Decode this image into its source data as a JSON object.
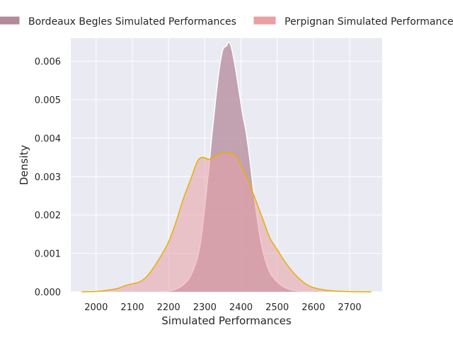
{
  "chart_data": {
    "type": "area",
    "title": "",
    "xlabel": "Simulated Performances",
    "ylabel": "Density",
    "xlim": [
      1930,
      2790
    ],
    "ylim": [
      0,
      0.0066
    ],
    "x_ticks": [
      2000,
      2100,
      2200,
      2300,
      2400,
      2500,
      2600,
      2700
    ],
    "y_ticks": [
      0.0,
      0.001,
      0.002,
      0.003,
      0.004,
      0.005,
      0.006
    ],
    "y_tick_labels": [
      "0.000",
      "0.001",
      "0.002",
      "0.003",
      "0.004",
      "0.005",
      "0.006"
    ],
    "grid": true,
    "legend_position": "top",
    "series": [
      {
        "name": "Bordeaux Begles Simulated Performances",
        "fill_color": "#b48a9b",
        "fill_opacity": 0.75,
        "line_color": "#ffffff",
        "points": [
          [
            2180,
            0
          ],
          [
            2200,
            2e-05
          ],
          [
            2220,
            7e-05
          ],
          [
            2240,
            0.00018
          ],
          [
            2260,
            0.0004
          ],
          [
            2280,
            0.0009
          ],
          [
            2290,
            0.0014
          ],
          [
            2300,
            0.0022
          ],
          [
            2310,
            0.0031
          ],
          [
            2320,
            0.0041
          ],
          [
            2330,
            0.005
          ],
          [
            2340,
            0.0058
          ],
          [
            2350,
            0.0063
          ],
          [
            2360,
            0.0064
          ],
          [
            2367,
            0.0065
          ],
          [
            2375,
            0.0063
          ],
          [
            2385,
            0.0058
          ],
          [
            2395,
            0.0052
          ],
          [
            2405,
            0.0046
          ],
          [
            2415,
            0.0041
          ],
          [
            2425,
            0.0034
          ],
          [
            2435,
            0.0026
          ],
          [
            2445,
            0.0019
          ],
          [
            2455,
            0.0013
          ],
          [
            2465,
            0.0009
          ],
          [
            2480,
            0.0005
          ],
          [
            2500,
            0.00026
          ],
          [
            2520,
            0.00012
          ],
          [
            2540,
            5e-05
          ],
          [
            2560,
            2e-05
          ],
          [
            2580,
            0
          ]
        ]
      },
      {
        "name": "Perpignan Simulated Performances",
        "fill_color": "#e8a0a5",
        "fill_opacity": 0.55,
        "line_color": "#e6b000",
        "points": [
          [
            1960,
            0
          ],
          [
            2000,
            1e-05
          ],
          [
            2030,
            4e-05
          ],
          [
            2060,
            9e-05
          ],
          [
            2080,
            0.00016
          ],
          [
            2100,
            0.00021
          ],
          [
            2120,
            0.00026
          ],
          [
            2140,
            0.0004
          ],
          [
            2160,
            0.00065
          ],
          [
            2180,
            0.00095
          ],
          [
            2200,
            0.0013
          ],
          [
            2220,
            0.0018
          ],
          [
            2240,
            0.0024
          ],
          [
            2260,
            0.0029
          ],
          [
            2280,
            0.0034
          ],
          [
            2295,
            0.0035
          ],
          [
            2310,
            0.00345
          ],
          [
            2325,
            0.0035
          ],
          [
            2340,
            0.0036
          ],
          [
            2355,
            0.00362
          ],
          [
            2370,
            0.00362
          ],
          [
            2385,
            0.00355
          ],
          [
            2400,
            0.0033
          ],
          [
            2420,
            0.0029
          ],
          [
            2440,
            0.0024
          ],
          [
            2460,
            0.0019
          ],
          [
            2480,
            0.0014
          ],
          [
            2500,
            0.0011
          ],
          [
            2520,
            0.0008
          ],
          [
            2540,
            0.00055
          ],
          [
            2560,
            0.00035
          ],
          [
            2580,
            0.0002
          ],
          [
            2600,
            0.00011
          ],
          [
            2630,
            5e-05
          ],
          [
            2660,
            2e-05
          ],
          [
            2700,
            5e-06
          ],
          [
            2760,
            0
          ]
        ]
      }
    ]
  },
  "legend": {
    "items": [
      {
        "label": "Bordeaux Begles Simulated Performances",
        "swatch": "#b48a9b"
      },
      {
        "label": "Perpignan Simulated Performances",
        "swatch": "#e8a0a5"
      }
    ]
  },
  "axes": {
    "facecolor": "#eaeaf2",
    "gridcolor": "#ffffff"
  }
}
